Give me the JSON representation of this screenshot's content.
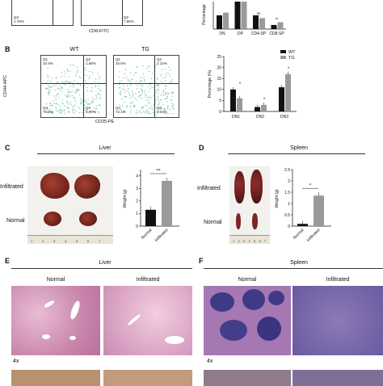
{
  "panels": {
    "A": {
      "axis_label": "CD8-FITC",
      "q_labels": [
        "Q3",
        "Q2"
      ],
      "q_vals": [
        "1.76%",
        "7.85%"
      ]
    },
    "B": {
      "label": "B",
      "plots": [
        {
          "title": "WT",
          "q": [
            "Q1",
            "Q2",
            "Q4",
            "Q3"
          ],
          "vals": [
            "10.4%",
            "1.68%",
            "75.0%",
            "9.74%"
          ]
        },
        {
          "title": "TG",
          "q": [
            "Q1",
            "Q2",
            "Q4",
            "Q3"
          ],
          "vals": [
            "15.6%",
            "2.14%",
            "72.1%",
            "9.44%"
          ]
        }
      ],
      "ylabel": "CD44-APC",
      "xlabel": "CD25-PE"
    },
    "C": {
      "label": "C",
      "title": "Liver",
      "row_top": "Infiltrated",
      "row_bottom": "Normal"
    },
    "D": {
      "label": "D",
      "title": "Spleen",
      "row_top": "Infiltrated",
      "row_bottom": "Normal"
    },
    "E": {
      "label": "E",
      "title": "Liver",
      "col_left": "Normal",
      "col_right": "Infiltrated",
      "mag": "4x"
    },
    "F": {
      "label": "F",
      "title": "Spleen",
      "col_left": "Normal",
      "col_right": "Infiltrated",
      "mag": "4x"
    }
  },
  "ruler_ticks": [
    "1",
    "2",
    "3",
    "4",
    "5",
    "6",
    "7"
  ],
  "chart_data": [
    {
      "type": "bar",
      "ylabel": "Percentage",
      "categories": [
        "DN",
        "DP",
        "CD4-SP",
        "CD8-SP"
      ],
      "series": [
        {
          "name": "WT",
          "values": [
            10,
            20,
            10,
            3
          ]
        },
        {
          "name": "TG",
          "values": [
            12,
            20,
            8,
            5
          ]
        }
      ],
      "ylim": [
        0,
        20
      ],
      "annotations": [
        "ns",
        "**"
      ]
    },
    {
      "type": "bar",
      "ylabel": "Percentage (%)",
      "categories": [
        "DN1",
        "DN2",
        "DN3"
      ],
      "series": [
        {
          "name": "WT",
          "values": [
            10,
            2,
            11
          ]
        },
        {
          "name": "TG",
          "values": [
            6,
            3,
            17
          ]
        }
      ],
      "yticks": [
        0,
        5,
        10,
        15,
        20,
        25
      ],
      "ylim": [
        0,
        25
      ],
      "legend": "top-right",
      "annotations": [
        "*",
        "*",
        "*"
      ]
    },
    {
      "type": "bar",
      "ylabel": "Weight (g)",
      "categories": [
        "Normal",
        "Infiltrated"
      ],
      "values": [
        1.3,
        3.6
      ],
      "yticks": [
        0,
        1,
        2,
        3,
        4
      ],
      "ylim": [
        0,
        4.5
      ],
      "annotations": [
        "**"
      ]
    },
    {
      "type": "bar",
      "ylabel": "Weight (g)",
      "categories": [
        "Normal",
        "Infiltrated"
      ],
      "values": [
        0.1,
        1.35
      ],
      "yticks": [
        0,
        0.5,
        1.0,
        1.5,
        2.0,
        2.5
      ],
      "ylim": [
        0,
        2.5
      ],
      "annotations": [
        "*"
      ]
    }
  ],
  "colors": {
    "wt": "#111111",
    "tg": "#9a9a9a",
    "he_pink": "#d7a6c4",
    "he_purple": "#5a4f96"
  }
}
